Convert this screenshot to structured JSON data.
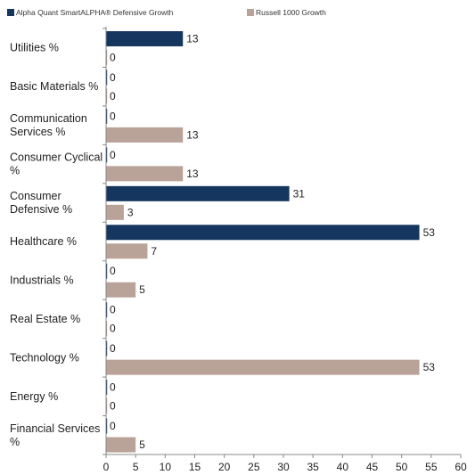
{
  "chart_data": {
    "type": "bar",
    "orientation": "horizontal",
    "title": "",
    "xlabel": "",
    "ylabel": "",
    "xlim": [
      0,
      60
    ],
    "xticks": [
      0,
      5,
      10,
      15,
      20,
      25,
      30,
      35,
      40,
      45,
      50,
      55,
      60
    ],
    "legend_position": "top",
    "grid": false,
    "categories": [
      [
        "Utilities %"
      ],
      [
        "Basic Materials %"
      ],
      [
        "Communication",
        "Services %"
      ],
      [
        "Consumer Cyclical",
        "%"
      ],
      [
        "Consumer",
        "Defensive %"
      ],
      [
        "Healthcare %"
      ],
      [
        "Industrials %"
      ],
      [
        "Real Estate %"
      ],
      [
        "Technology %"
      ],
      [
        "Energy %"
      ],
      [
        "Financial Services",
        "%"
      ]
    ],
    "series": [
      {
        "name": "Alpha Quant SmartALPHA® Defensive Growth",
        "color": "#14365f",
        "values": [
          13,
          0,
          0,
          0,
          31,
          53,
          0,
          0,
          0,
          0,
          0
        ]
      },
      {
        "name": "Russell 1000 Growth",
        "color": "#b9a297",
        "values": [
          0,
          0,
          13,
          13,
          3,
          7,
          5,
          0,
          53,
          0,
          5
        ]
      }
    ]
  }
}
